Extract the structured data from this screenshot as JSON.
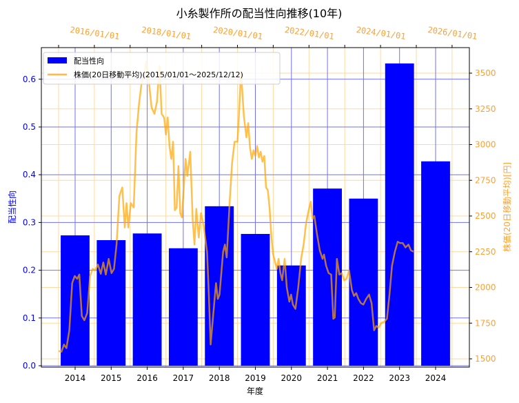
{
  "chart_data": {
    "type": "bar+line",
    "title": "小糸製作所の配当性向推移(10年)",
    "xlabel": "年度",
    "ylabel": "配当性向",
    "y2label": "株価(20日移動平均)[円]",
    "categories": [
      "2014",
      "2015",
      "2016",
      "2017",
      "2018",
      "2019",
      "2020",
      "2021",
      "2022",
      "2023",
      "2024"
    ],
    "series": [
      {
        "name": "配当性向",
        "type": "bar",
        "color": "#0000ff",
        "axis": "left",
        "values": [
          0.273,
          0.263,
          0.277,
          0.246,
          0.334,
          0.276,
          0.21,
          0.371,
          0.35,
          0.633,
          0.428
        ]
      },
      {
        "name": "株価(20日移動平均)(2015/01/01～2025/12/12)",
        "type": "line",
        "color": "#ffa500",
        "axis": "right",
        "x_date_axis": "top",
        "points": [
          [
            2015.0,
            1555
          ],
          [
            2015.08,
            1550
          ],
          [
            2015.15,
            1600
          ],
          [
            2015.22,
            1575
          ],
          [
            2015.3,
            1700
          ],
          [
            2015.38,
            2030
          ],
          [
            2015.45,
            2080
          ],
          [
            2015.52,
            2060
          ],
          [
            2015.58,
            2090
          ],
          [
            2015.65,
            1800
          ],
          [
            2015.72,
            1770
          ],
          [
            2015.8,
            1820
          ],
          [
            2015.88,
            2080
          ],
          [
            2015.95,
            2130
          ],
          [
            2016.02,
            2120
          ],
          [
            2016.1,
            2160
          ],
          [
            2016.18,
            2095
          ],
          [
            2016.25,
            2175
          ],
          [
            2016.32,
            2090
          ],
          [
            2016.4,
            2200
          ],
          [
            2016.48,
            2100
          ],
          [
            2016.55,
            2130
          ],
          [
            2016.62,
            2300
          ],
          [
            2016.7,
            2640
          ],
          [
            2016.78,
            2700
          ],
          [
            2016.85,
            2420
          ],
          [
            2016.9,
            2590
          ],
          [
            2016.95,
            2420
          ],
          [
            2017.02,
            2590
          ],
          [
            2017.1,
            2560
          ],
          [
            2017.18,
            3090
          ],
          [
            2017.25,
            3290
          ],
          [
            2017.32,
            3430
          ],
          [
            2017.4,
            3500
          ],
          [
            2017.45,
            3580
          ],
          [
            2017.52,
            3450
          ],
          [
            2017.6,
            3260
          ],
          [
            2017.68,
            3215
          ],
          [
            2017.75,
            3300
          ],
          [
            2017.82,
            3550
          ],
          [
            2017.88,
            3215
          ],
          [
            2017.95,
            3190
          ],
          [
            2018.0,
            3070
          ],
          [
            2018.05,
            3190
          ],
          [
            2018.1,
            2990
          ],
          [
            2018.15,
            2900
          ],
          [
            2018.2,
            3020
          ],
          [
            2018.25,
            2540
          ],
          [
            2018.3,
            2560
          ],
          [
            2018.35,
            2850
          ],
          [
            2018.4,
            2520
          ],
          [
            2018.45,
            2490
          ],
          [
            2018.5,
            2700
          ],
          [
            2018.55,
            2900
          ],
          [
            2018.6,
            2780
          ],
          [
            2018.68,
            2950
          ],
          [
            2018.75,
            2470
          ],
          [
            2018.8,
            2300
          ],
          [
            2018.85,
            2550
          ],
          [
            2018.92,
            2350
          ],
          [
            2018.98,
            2520
          ],
          [
            2019.05,
            2440
          ],
          [
            2019.15,
            2250
          ],
          [
            2019.2,
            1950
          ],
          [
            2019.25,
            1600
          ],
          [
            2019.32,
            1800
          ],
          [
            2019.4,
            2030
          ],
          [
            2019.45,
            1920
          ],
          [
            2019.5,
            1950
          ],
          [
            2019.55,
            2100
          ],
          [
            2019.6,
            2250
          ],
          [
            2019.65,
            2300
          ],
          [
            2019.7,
            2210
          ],
          [
            2019.78,
            2590
          ],
          [
            2019.85,
            2870
          ],
          [
            2019.92,
            3020
          ],
          [
            2020.0,
            3020
          ],
          [
            2020.05,
            3250
          ],
          [
            2020.1,
            3510
          ],
          [
            2020.18,
            3200
          ],
          [
            2020.25,
            3050
          ],
          [
            2020.3,
            3150
          ],
          [
            2020.35,
            2980
          ],
          [
            2020.4,
            2900
          ],
          [
            2020.45,
            2960
          ],
          [
            2020.5,
            2920
          ],
          [
            2020.55,
            2990
          ],
          [
            2020.6,
            2910
          ],
          [
            2020.65,
            2950
          ],
          [
            2020.7,
            2880
          ],
          [
            2020.75,
            2920
          ],
          [
            2020.8,
            2700
          ],
          [
            2020.85,
            2680
          ],
          [
            2020.9,
            2550
          ],
          [
            2020.95,
            2350
          ],
          [
            2021.0,
            2230
          ],
          [
            2021.05,
            2180
          ],
          [
            2021.1,
            2130
          ],
          [
            2021.15,
            2200
          ],
          [
            2021.2,
            2100
          ],
          [
            2021.25,
            2050
          ],
          [
            2021.32,
            2200
          ],
          [
            2021.38,
            2000
          ],
          [
            2021.45,
            1900
          ],
          [
            2021.5,
            1950
          ],
          [
            2021.55,
            1880
          ],
          [
            2021.62,
            1850
          ],
          [
            2021.7,
            2000
          ],
          [
            2021.78,
            2200
          ],
          [
            2021.85,
            2300
          ],
          [
            2021.92,
            2450
          ],
          [
            2022.0,
            2550
          ],
          [
            2022.05,
            2600
          ],
          [
            2022.1,
            2480
          ],
          [
            2022.15,
            2500
          ],
          [
            2022.22,
            2380
          ],
          [
            2022.3,
            2260
          ],
          [
            2022.38,
            2200
          ],
          [
            2022.42,
            2230
          ],
          [
            2022.48,
            2150
          ],
          [
            2022.55,
            2100
          ],
          [
            2022.62,
            2090
          ],
          [
            2022.68,
            1780
          ],
          [
            2022.72,
            1790
          ],
          [
            2022.78,
            2200
          ],
          [
            2022.85,
            2090
          ],
          [
            2022.92,
            2100
          ],
          [
            2022.98,
            2050
          ],
          [
            2023.05,
            2060
          ],
          [
            2023.12,
            2120
          ],
          [
            2023.2,
            1980
          ],
          [
            2023.26,
            1940
          ],
          [
            2023.32,
            1960
          ],
          [
            2023.38,
            1920
          ],
          [
            2023.45,
            1890
          ],
          [
            2023.52,
            1880
          ],
          [
            2023.6,
            1920
          ],
          [
            2023.68,
            1950
          ],
          [
            2023.75,
            1890
          ],
          [
            2023.82,
            1700
          ],
          [
            2023.88,
            1730
          ],
          [
            2023.95,
            1720
          ],
          [
            2024.02,
            1750
          ],
          [
            2024.1,
            1760
          ],
          [
            2024.18,
            1780
          ],
          [
            2024.25,
            1950
          ],
          [
            2024.32,
            2150
          ],
          [
            2024.4,
            2250
          ],
          [
            2024.48,
            2320
          ],
          [
            2024.55,
            2310
          ],
          [
            2024.62,
            2310
          ],
          [
            2024.7,
            2280
          ],
          [
            2024.78,
            2300
          ],
          [
            2024.85,
            2260
          ],
          [
            2024.92,
            2250
          ]
        ]
      }
    ],
    "ylim": [
      0,
      0.665
    ],
    "y2lim": [
      1445,
      3660
    ],
    "yticks": [
      "0.0",
      "0.1",
      "0.2",
      "0.3",
      "0.4",
      "0.5",
      "0.6"
    ],
    "y2ticks": [
      "1500",
      "1750",
      "2000",
      "2250",
      "2500",
      "2750",
      "3000",
      "3250",
      "3500"
    ],
    "top_xticks": [
      "2016/01/01",
      "2018/01/01",
      "2020/01/01",
      "2022/01/01",
      "2024/01/01",
      "2026/01/01"
    ],
    "grid": true,
    "legend_position": "upper left"
  },
  "legend": {
    "bar_label": "配当性向",
    "line_label": "株価(20日移動平均)(2015/01/01～2025/12/12)"
  }
}
